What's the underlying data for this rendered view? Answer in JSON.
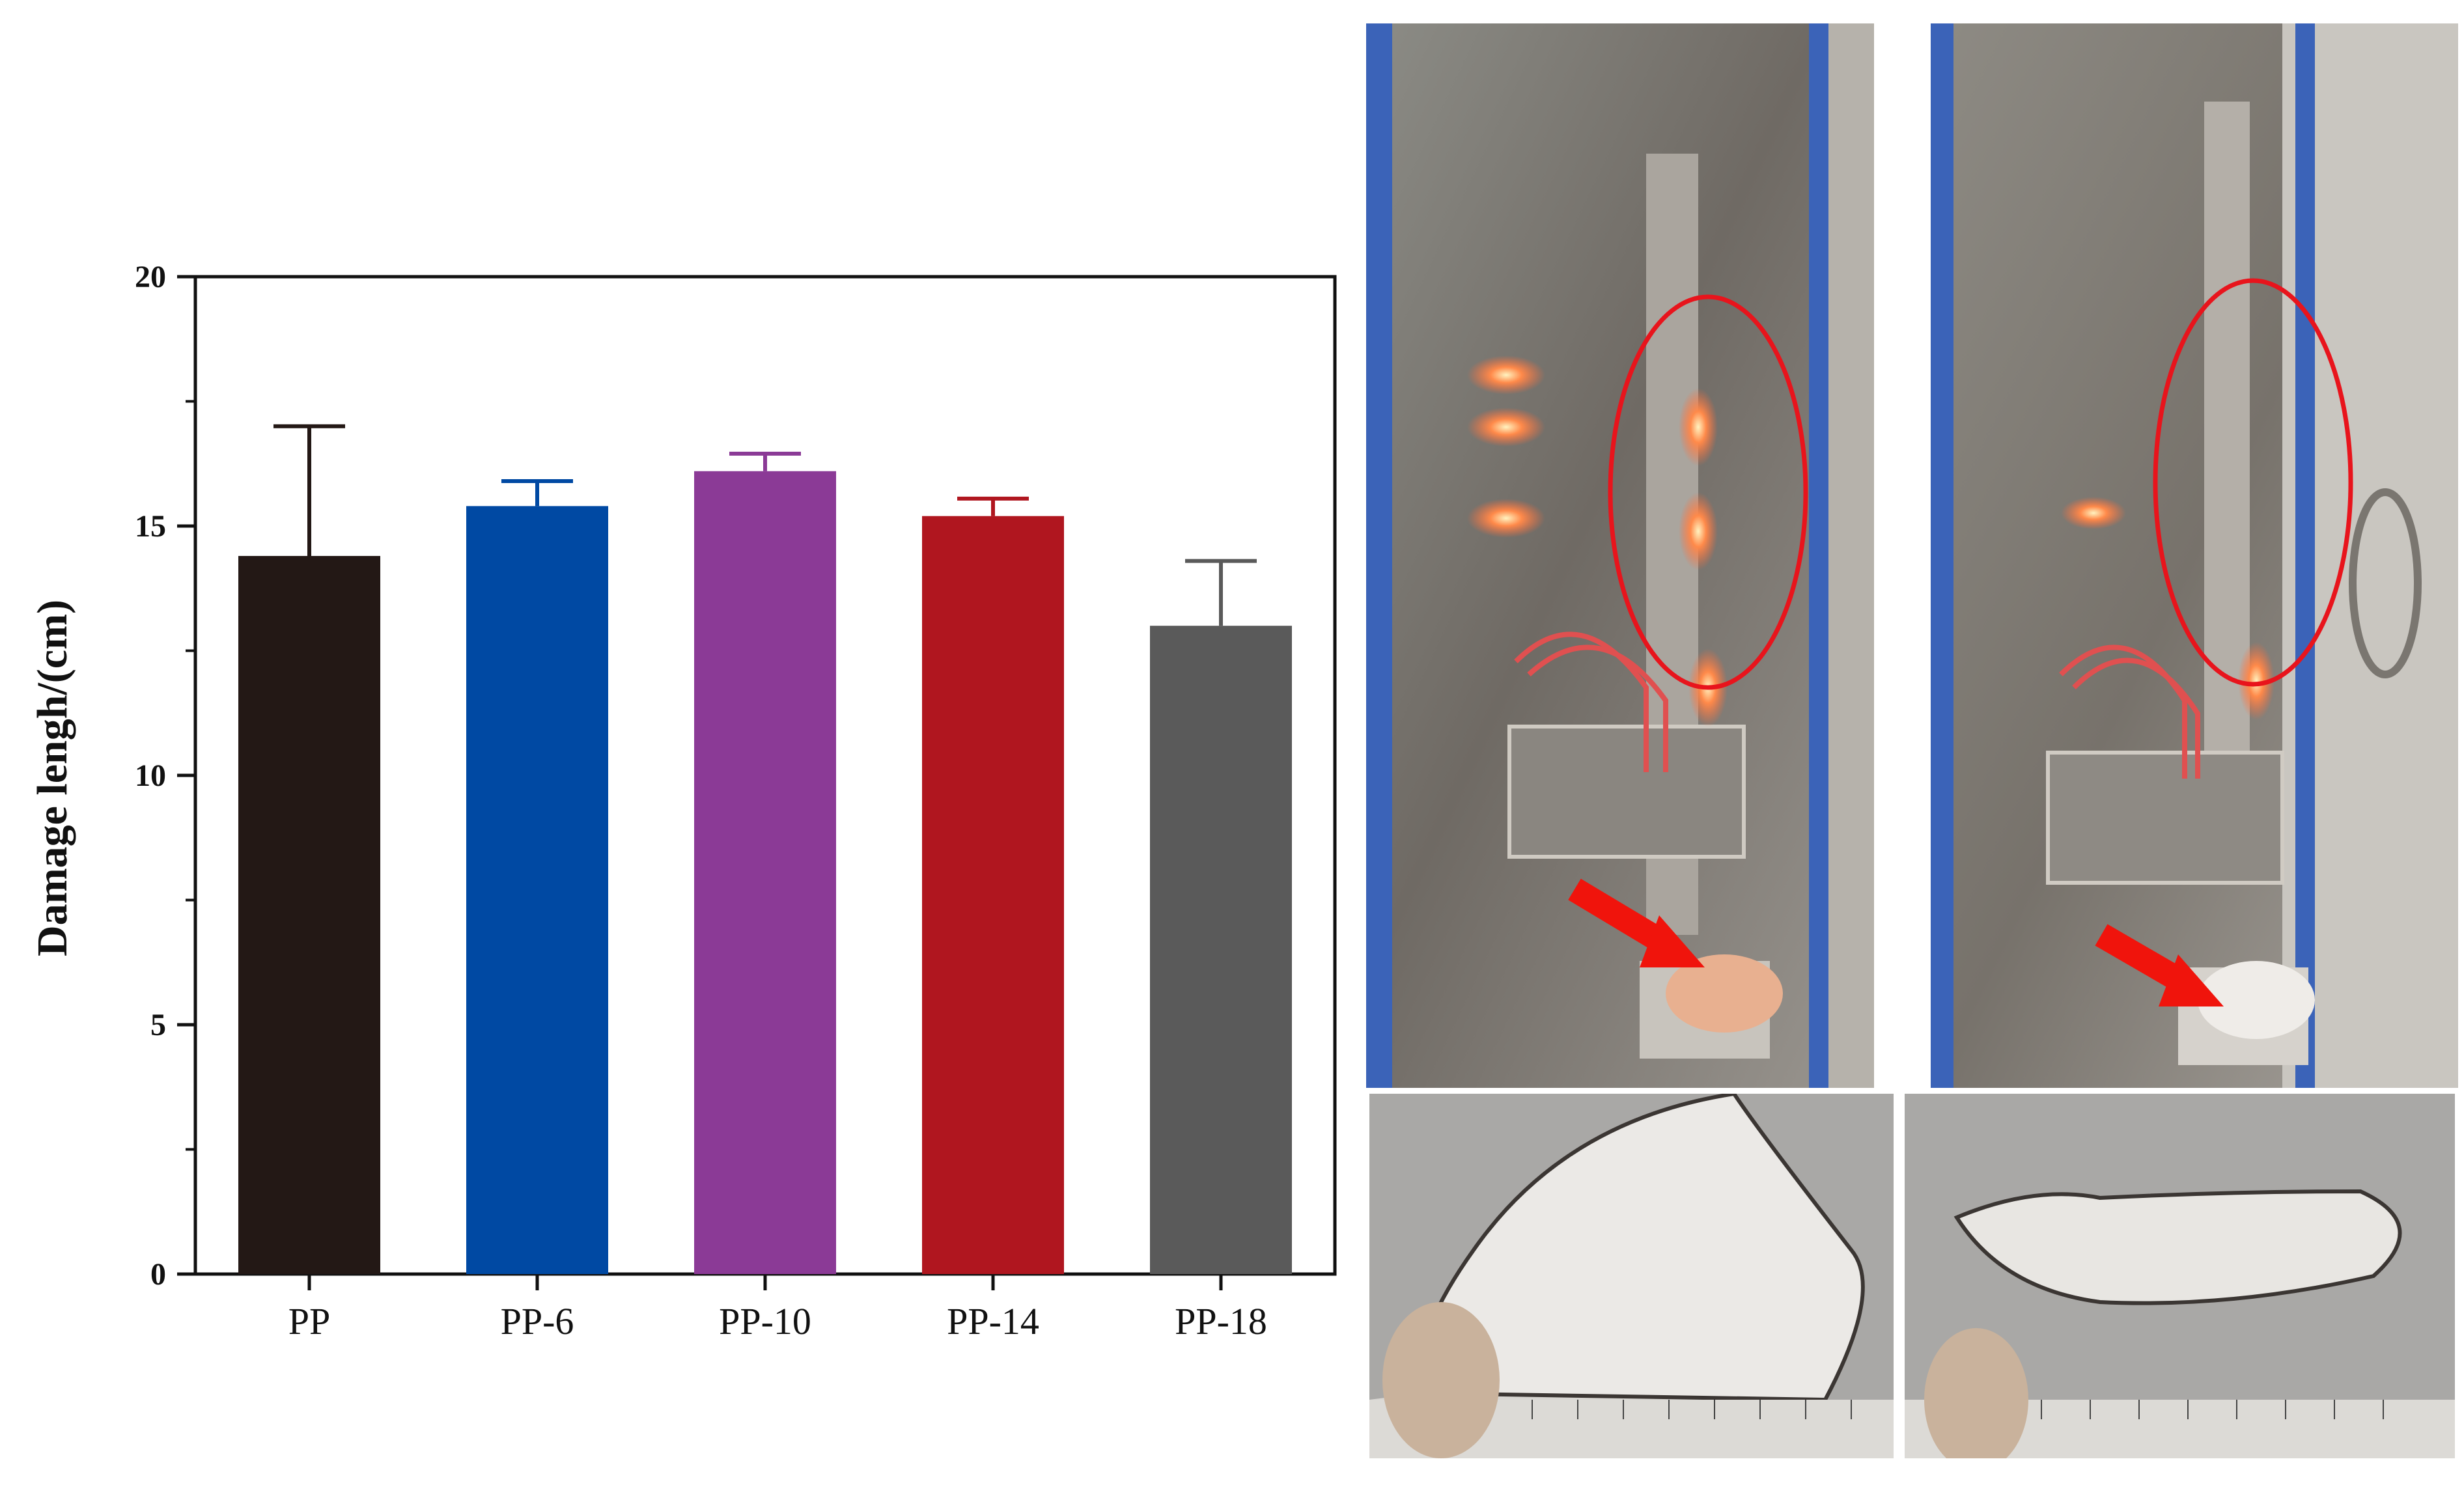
{
  "chart_data": {
    "type": "bar",
    "categories": [
      "PP",
      "PP-6",
      "PP-10",
      "PP-14",
      "PP-18"
    ],
    "values": [
      14.4,
      15.4,
      16.1,
      15.2,
      13.0
    ],
    "errors": [
      2.6,
      0.5,
      0.35,
      0.35,
      1.3
    ],
    "colors": [
      "#231815",
      "#0049a3",
      "#8b3a96",
      "#b0161f",
      "#5a5a5a"
    ],
    "title": "",
    "xlabel": "",
    "ylabel": "Damage  lengh/(cm)",
    "ylim": [
      0,
      20
    ],
    "yticks": [
      "0",
      "5",
      "10",
      "15",
      "20"
    ],
    "grid": false,
    "legend": "none"
  },
  "photos": {
    "flame_test_1": "flame-test-photo",
    "flame_test_2": "flame-test-photo",
    "burned_sample_1": "burned-sample-photo",
    "burned_sample_2": "burned-sample-photo"
  }
}
